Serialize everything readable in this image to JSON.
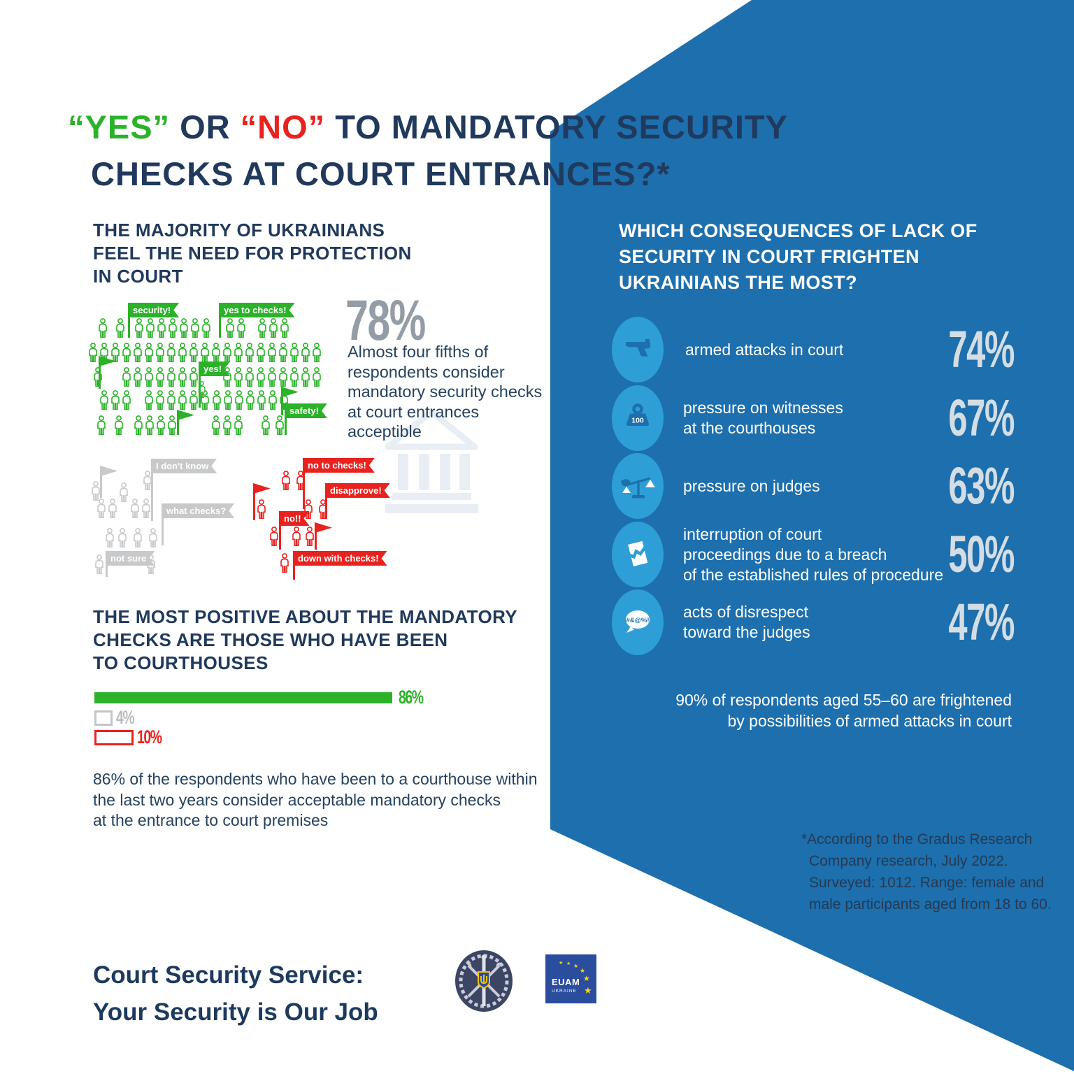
{
  "colors": {
    "panel_blue": "#1d6fad",
    "icon_blue": "#2d9fd6",
    "green": "#2bb229",
    "red": "#e8231f",
    "gray": "#c7c9cb",
    "navy": "#20395c",
    "pct_gray": "#d5dde4",
    "stat_gray": "#949ca5"
  },
  "title": {
    "yes": "“YES”",
    "or": " OR ",
    "no": "“NO”",
    "rest": " TO MANDATORY SECURITY",
    "line2": "CHECKS AT COURT ENTRANCES?*"
  },
  "section1": {
    "heading_lines": [
      "THE MAJORITY OF UKRAINIANS",
      "FEEL THE NEED FOR PROTECTION",
      "IN COURT"
    ],
    "stat_value": "78%",
    "stat_lines": [
      "Almost four fifths of",
      "respondents consider",
      "mandatory security checks",
      "at court entrances",
      "acceptible"
    ],
    "green_flags": {
      "security": "security!",
      "yes_to_checks": "yes to checks!",
      "yes": "yes!",
      "safety": "safety!"
    },
    "gray_labels": {
      "i_dont_know": "I don't know",
      "what_checks": "what checks?",
      "not_sure": "not sure"
    },
    "red_labels": {
      "no_to_checks": "no to checks!",
      "disapprove": "disapprove!",
      "no": "no!!",
      "down_with_checks": "down with checks!"
    }
  },
  "section2": {
    "heading_lines": [
      "THE MOST POSITIVE ABOUT THE MANDATORY",
      "CHECKS ARE THOSE WHO HAVE BEEN",
      "TO COURTHOUSES"
    ],
    "bars": [
      {
        "label": "86%",
        "value": 86,
        "style": "green-filled"
      },
      {
        "label": "4%",
        "value": 4,
        "style": "gray-outline"
      },
      {
        "label": "10%",
        "value": 10,
        "style": "red-outline"
      }
    ],
    "para_lines": [
      "86% of the respondents who have been to a courthouse within",
      "the last two years consider acceptable mandatory checks",
      "at the entrance to court premises"
    ]
  },
  "right": {
    "heading_lines": [
      "WHICH CONSEQUENCES OF LACK OF",
      "SECURITY IN COURT FRIGHTEN",
      "UKRAINIANS THE MOST?"
    ],
    "items": [
      {
        "icon": "gun-icon",
        "lines": [
          "armed attacks in court"
        ],
        "pct": "74%"
      },
      {
        "icon": "weight-icon",
        "lines": [
          "pressure on witnesses",
          "at the courthouses"
        ],
        "pct": "67%"
      },
      {
        "icon": "scales-icon",
        "lines": [
          "pressure on judges"
        ],
        "pct": "63%"
      },
      {
        "icon": "torn-document-icon",
        "lines": [
          "interruption of court",
          "proceedings due to a breach",
          "of the established rules of procedure"
        ],
        "pct": "50%"
      },
      {
        "icon": "speech-bubble-icon",
        "lines": [
          "acts of disrespect",
          "toward the judges"
        ],
        "pct": "47%"
      }
    ],
    "weight_label": "100",
    "bubble_text": "#&@%!",
    "note_lines": [
      "90% of respondents aged 55–60 are frightened",
      "by possibilities of armed attacks in court"
    ],
    "footnote_lines": [
      "*According to the Gradus Research",
      "Company research, July 2022.",
      "Surveyed: 1012. Range: female and",
      "male participants aged from 18 to 60."
    ]
  },
  "footer": {
    "title_lines": [
      "Court Security Service:",
      "Your Security is Our Job"
    ],
    "euam": {
      "line1": "EUAM",
      "line2": "UKRAINE"
    }
  },
  "chart_data": [
    {
      "type": "pictograph",
      "title": "THE MAJORITY OF UKRAINIANS FEEL THE NEED FOR PROTECTION IN COURT",
      "groups": [
        "approve (green figures)",
        "undecided (gray figures)",
        "oppose (red figures)"
      ],
      "highlight_value": 78,
      "highlight_label": "78%",
      "annotation": "Almost four fifths of respondents consider mandatory security checks at court entrances acceptible"
    },
    {
      "type": "bar",
      "title": "THE MOST POSITIVE ABOUT THE MANDATORY CHECKS ARE THOSE WHO HAVE BEEN TO COURTHOUSES",
      "categories": [
        "approve (been to courthouse)",
        "undecided",
        "oppose"
      ],
      "values": [
        86,
        4,
        10
      ],
      "colors": [
        "#2bb229",
        "#c7c9cb",
        "#e8231f"
      ],
      "xlim": [
        0,
        100
      ],
      "annotation": "86% of the respondents who have been to a courthouse within the last two years consider acceptable mandatory checks at the entrance to court premises"
    },
    {
      "type": "bar",
      "title": "WHICH CONSEQUENCES OF LACK OF SECURITY IN COURT FRIGHTEN UKRAINIANS THE MOST?",
      "categories": [
        "armed attacks in court",
        "pressure on witnesses at the courthouses",
        "pressure on judges",
        "interruption of court proceedings due to a breach of the established rules of procedure",
        "acts of disrespect toward the judges"
      ],
      "values": [
        74,
        67,
        63,
        50,
        47
      ],
      "xlim": [
        0,
        100
      ],
      "annotation": "90% of respondents aged 55–60 are frightened by possibilities of armed attacks in court"
    }
  ]
}
